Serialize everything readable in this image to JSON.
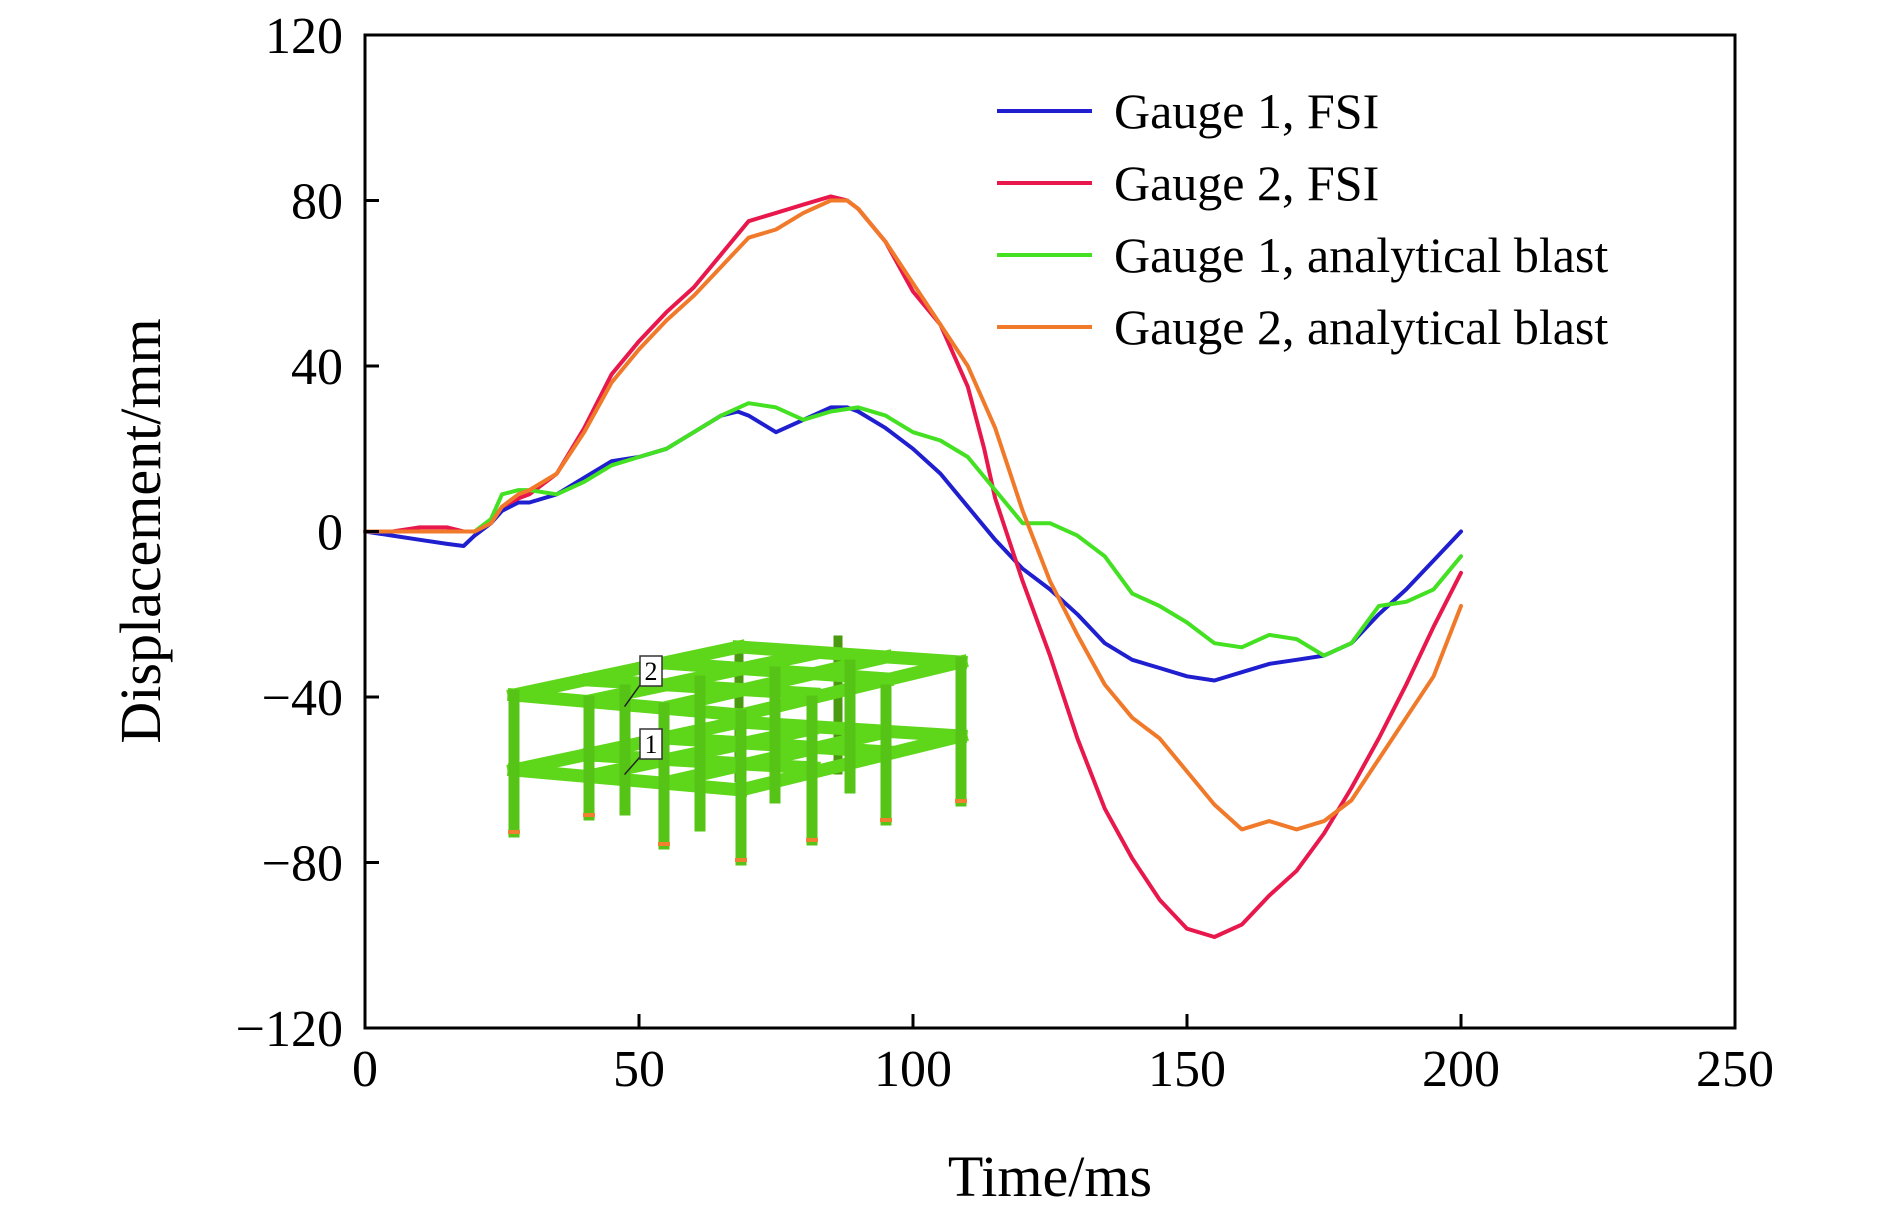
{
  "chart_data": {
    "type": "line",
    "title": "",
    "xlabel": "Time/ms",
    "ylabel": "Displacement/mm",
    "xlim": [
      0,
      250
    ],
    "ylim": [
      -120,
      120
    ],
    "xticks": [
      0,
      50,
      100,
      150,
      200,
      250
    ],
    "yticks": [
      120,
      80,
      40,
      0,
      -40,
      -80,
      -120
    ],
    "xtick_labels": [
      "0",
      "50",
      "100",
      "150",
      "200",
      "250"
    ],
    "ytick_labels": [
      "120",
      "80",
      "40",
      "0",
      "−40",
      "−80",
      "−120"
    ],
    "grid": false,
    "legend_position": "top-right",
    "series": [
      {
        "name": "Gauge 1, FSI",
        "color": "#1f1fd0",
        "x": [
          0,
          5,
          10,
          15,
          18,
          20,
          23,
          25,
          28,
          30,
          35,
          40,
          45,
          50,
          55,
          60,
          65,
          68,
          70,
          75,
          80,
          85,
          88,
          90,
          95,
          100,
          105,
          110,
          115,
          120,
          125,
          130,
          135,
          140,
          145,
          150,
          155,
          160,
          165,
          170,
          175,
          180,
          185,
          190,
          195,
          200
        ],
        "y": [
          0,
          -1,
          -2,
          -3,
          -3.5,
          -1,
          2,
          5,
          7,
          7,
          9,
          13,
          17,
          18,
          20,
          24,
          28,
          29,
          28,
          24,
          27,
          30,
          30,
          29,
          25,
          20,
          14,
          6,
          -2,
          -9,
          -14,
          -20,
          -27,
          -31,
          -33,
          -35,
          -36,
          -34,
          -32,
          -31,
          -30,
          -27,
          -20,
          -14,
          -7,
          0
        ]
      },
      {
        "name": "Gauge 2, FSI",
        "color": "#e8174c",
        "x": [
          0,
          5,
          10,
          15,
          18,
          20,
          23,
          25,
          28,
          30,
          35,
          40,
          45,
          50,
          55,
          60,
          65,
          70,
          75,
          80,
          85,
          88,
          90,
          95,
          100,
          105,
          110,
          113,
          115,
          120,
          125,
          130,
          135,
          140,
          145,
          150,
          155,
          160,
          165,
          170,
          175,
          180,
          185,
          190,
          195,
          200
        ],
        "y": [
          0,
          0,
          1,
          1,
          0,
          0,
          2,
          6,
          8,
          9,
          14,
          25,
          38,
          46,
          53,
          59,
          67,
          75,
          77,
          79,
          81,
          80,
          78,
          70,
          58,
          50,
          35,
          20,
          8,
          -12,
          -30,
          -50,
          -67,
          -79,
          -89,
          -96,
          -98,
          -95,
          -88,
          -82,
          -73,
          -62,
          -50,
          -37,
          -23,
          -10
        ]
      },
      {
        "name": "Gauge 1, analytical blast",
        "color": "#44e022",
        "x": [
          0,
          5,
          10,
          15,
          18,
          20,
          23,
          25,
          28,
          30,
          35,
          40,
          45,
          50,
          55,
          60,
          65,
          70,
          75,
          80,
          85,
          90,
          95,
          100,
          105,
          110,
          115,
          120,
          125,
          130,
          135,
          140,
          145,
          150,
          155,
          160,
          165,
          170,
          175,
          180,
          185,
          190,
          195,
          200
        ],
        "y": [
          0,
          0,
          0,
          0,
          0,
          0,
          3,
          9,
          10,
          10,
          9,
          12,
          16,
          18,
          20,
          24,
          28,
          31,
          30,
          27,
          29,
          30,
          28,
          24,
          22,
          18,
          10,
          2,
          2,
          -1,
          -6,
          -15,
          -18,
          -22,
          -27,
          -28,
          -25,
          -26,
          -30,
          -27,
          -18,
          -17,
          -14,
          -6
        ]
      },
      {
        "name": "Gauge 2, analytical blast",
        "color": "#f07a2a",
        "x": [
          0,
          5,
          10,
          15,
          18,
          20,
          23,
          25,
          28,
          30,
          35,
          40,
          45,
          50,
          55,
          60,
          65,
          70,
          75,
          80,
          85,
          88,
          90,
          95,
          100,
          105,
          110,
          115,
          120,
          125,
          130,
          135,
          140,
          145,
          150,
          155,
          160,
          165,
          170,
          175,
          180,
          185,
          190,
          195,
          200
        ],
        "y": [
          0,
          0,
          0,
          0,
          0,
          0,
          2,
          6,
          9,
          10,
          14,
          24,
          36,
          44,
          51,
          57,
          64,
          71,
          73,
          77,
          80,
          80,
          78,
          70,
          60,
          50,
          40,
          25,
          5,
          -12,
          -25,
          -37,
          -45,
          -50,
          -58,
          -66,
          -72,
          -70,
          -72,
          -70,
          -65,
          -55,
          -45,
          -35,
          -18
        ]
      }
    ]
  },
  "inset": {
    "gauge_labels": [
      "2",
      "1"
    ]
  }
}
